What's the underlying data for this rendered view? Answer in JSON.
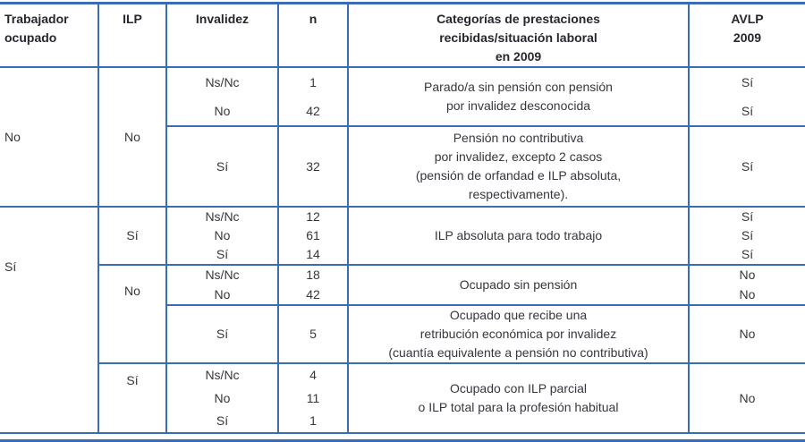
{
  "colors": {
    "border_blue": "#3a6db5",
    "text": "#36363e"
  },
  "table": {
    "header": {
      "trabajador": "Trabajador\nocupado",
      "ilp": "ILP",
      "invalidez": "Invalidez",
      "n": "n",
      "categorias": "Categorías de prestaciones\nrecibidas/situación laboral\nen 2009",
      "avlp": "AVLP\n2009"
    },
    "sections": [
      {
        "trabajador": "No",
        "ilp_groups": [
          {
            "ilp": "No",
            "subgroups": [
              {
                "category": "Parado/a sin pensión con pensión\npor invalidez desconocida",
                "rows": [
                  {
                    "invalidez": "Ns/Nc",
                    "n": "1",
                    "avlp": "Sí"
                  },
                  {
                    "invalidez": "No",
                    "n": "42",
                    "avlp": "Sí"
                  }
                ]
              },
              {
                "category": "Pensión no contributiva\npor invalidez, excepto 2 casos\n(pensión de orfandad e ILP absoluta,\nrespectivamente).",
                "rows": [
                  {
                    "invalidez": "Sí",
                    "n": "32",
                    "avlp": "Sí"
                  }
                ]
              }
            ]
          }
        ]
      },
      {
        "trabajador": "Sí",
        "ilp_groups": [
          {
            "ilp": "Sí",
            "subgroups": [
              {
                "category": "ILP absoluta para todo trabajo",
                "rows": [
                  {
                    "invalidez": "Ns/Nc",
                    "n": "12",
                    "avlp": "Sí"
                  },
                  {
                    "invalidez": "No",
                    "n": "61",
                    "avlp": "Sí"
                  },
                  {
                    "invalidez": "Sí",
                    "n": "14",
                    "avlp": "Sí"
                  }
                ]
              }
            ]
          },
          {
            "ilp": "No",
            "subgroups": [
              {
                "category": "Ocupado sin pensión",
                "rows": [
                  {
                    "invalidez": "Ns/Nc",
                    "n": "18",
                    "avlp": "No"
                  },
                  {
                    "invalidez": "No",
                    "n": "42",
                    "avlp": "No"
                  }
                ]
              },
              {
                "category": "Ocupado que recibe una\nretribución económica por invalidez\n(cuantía equivalente a pensión no contributiva)",
                "rows": [
                  {
                    "invalidez": "Sí",
                    "n": "5",
                    "avlp": "No"
                  }
                ]
              }
            ]
          },
          {
            "ilp": "Sí",
            "subgroups": [
              {
                "category": "Ocupado con ILP parcial\no ILP total para la profesión habitual",
                "avlp": "No",
                "rows": [
                  {
                    "invalidez": "Ns/Nc",
                    "n": "4"
                  },
                  {
                    "invalidez": "No",
                    "n": "11"
                  },
                  {
                    "invalidez": "Sí",
                    "n": "1"
                  }
                ]
              }
            ]
          }
        ]
      }
    ]
  }
}
